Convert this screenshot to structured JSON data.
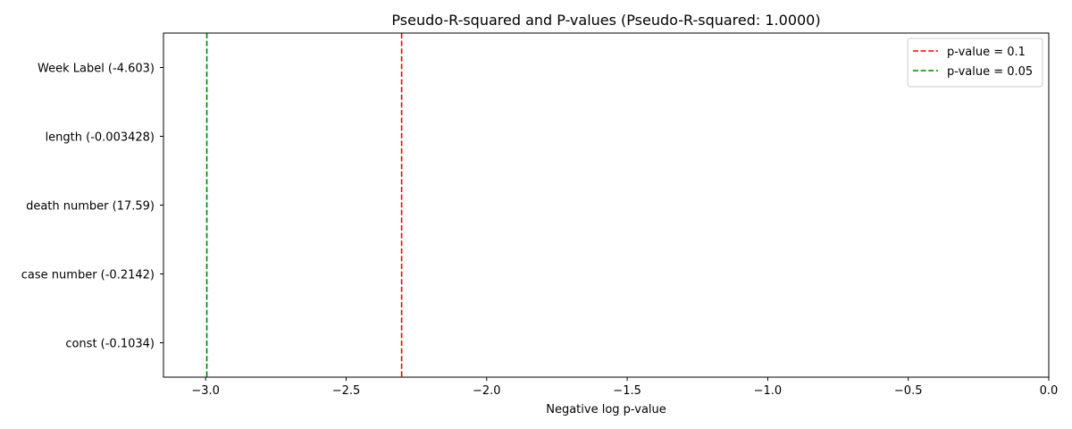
{
  "chart_data": {
    "type": "bar",
    "orientation": "horizontal",
    "title": "Pseudo-R-squared and P-values (Pseudo-R-squared: 1.0000)",
    "xlabel": "Negative log p-value",
    "ylabel": "",
    "xlim": [
      -3.15,
      0.0
    ],
    "xticks": [
      -3.0,
      -2.5,
      -2.0,
      -1.5,
      -1.0,
      -0.5,
      0.0
    ],
    "xtick_labels": [
      "−3.0",
      "−2.5",
      "−2.0",
      "−1.5",
      "−1.0",
      "−0.5",
      "0.0"
    ],
    "categories": [
      "const (-0.1034)",
      "case number (-0.2142)",
      "death number (17.59)",
      "length (-0.003428)",
      "Week Label (-4.603)"
    ],
    "values": [
      null,
      null,
      null,
      null,
      null
    ],
    "grid": false,
    "reference_lines": [
      {
        "label": "p-value = 0.1",
        "x": -2.302585,
        "color": "#ff0000",
        "style": "dashed"
      },
      {
        "label": "p-value = 0.05",
        "x": -2.995732,
        "color": "#008000",
        "style": "dashed"
      }
    ],
    "legend_position": "top-right"
  }
}
